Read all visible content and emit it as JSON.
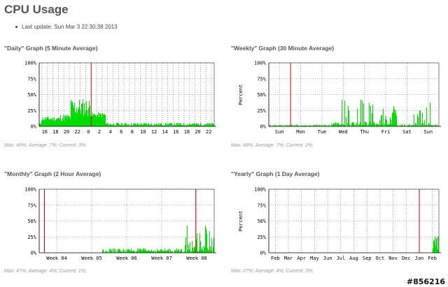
{
  "page": {
    "title": "CPU Usage",
    "last_update": "Last update: Sun Mar 3 22:30:38 2013"
  },
  "colors": {
    "series": "#00dd00",
    "marker": "#cc0000",
    "grid": "#666666"
  },
  "graphs": [
    {
      "id": "daily",
      "title": "\"Daily\" Graph (5 Minute Average)",
      "caption": "Max: 49%; Average: 7%; Current: 3%;",
      "ylabel": "",
      "yticks": [
        "100%",
        "75%",
        "50%",
        "25%",
        "0%"
      ],
      "xticks": [
        "16",
        "18",
        "20",
        "22",
        "0",
        "2",
        "4",
        "6",
        "8",
        "10",
        "12",
        "14",
        "16",
        "18",
        "20",
        "22"
      ],
      "vgrid_count": 32,
      "marker_pos": 0.297
    },
    {
      "id": "weekly",
      "title": "\"Weekly\" Graph (30 Minute Average)",
      "caption": "Max: 48%; Average: 7%; Current: 2%;",
      "ylabel": "Percent",
      "yticks": [
        "100%",
        "75%",
        "50%",
        "25%",
        "0%"
      ],
      "xticks": [
        "Sun",
        "Mon",
        "Tue",
        "Wed",
        "Thu",
        "Fri",
        "Sat",
        "Sun"
      ],
      "vgrid_count": 8,
      "marker_pos": 0.128
    },
    {
      "id": "monthly",
      "title": "\"Monthly\" Graph (2 Hour Average)",
      "caption": "Max: 47%; Average: 4%; Current: 1%;",
      "ylabel": "",
      "yticks": [
        "100%",
        "75%",
        "50%",
        "25%",
        "0%"
      ],
      "xticks": [
        "Week 04",
        "Week 05",
        "Week 06",
        "Week 07",
        "Week 08"
      ],
      "vgrid_count": 5,
      "marker_pos": 0.03,
      "marker_pos2": 0.895
    },
    {
      "id": "yearly",
      "title": "\"Yearly\" Graph (1 Day Average)",
      "caption": "Max: 27%; Average: 4%; Current: 3%;",
      "ylabel": "Percent",
      "yticks": [
        "100%",
        "75%",
        "50%",
        "25%",
        "0%"
      ],
      "xticks": [
        "Feb",
        "Mar",
        "Apr",
        "May",
        "Jun",
        "Jul",
        "Aug",
        "Sep",
        "Oct",
        "Nov",
        "Dec",
        "Jan",
        "Feb"
      ],
      "vgrid_count": 13,
      "marker_pos": 0.885
    }
  ],
  "watermark": "#856216"
}
